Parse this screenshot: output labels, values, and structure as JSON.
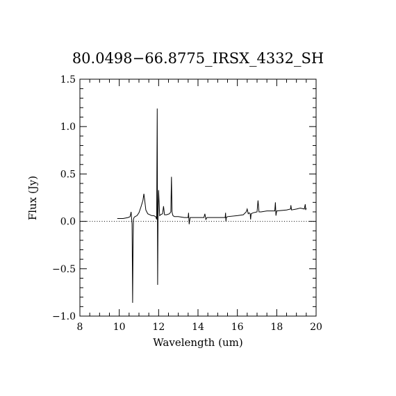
{
  "chart_data": {
    "type": "line",
    "title": "80.0498−66.8775_IRSX_4332_SH",
    "xlabel": "Wavelength (um)",
    "ylabel": "Flux (Jy)",
    "xlim": [
      8,
      20
    ],
    "ylim": [
      -1.0,
      1.5
    ],
    "x_ticks": [
      8,
      10,
      12,
      14,
      16,
      18,
      20
    ],
    "x_tick_labels": [
      "8",
      "10",
      "12",
      "14",
      "16",
      "18",
      "20"
    ],
    "y_ticks": [
      -1.0,
      -0.5,
      0.0,
      0.5,
      1.0,
      1.5
    ],
    "y_tick_labels": [
      "−1.0",
      "−0.5",
      "0.0",
      "0.5",
      "1.0",
      "1.5"
    ],
    "zero_line": true,
    "grid": false,
    "series": [
      {
        "x": [
          9.9,
          10.2,
          10.45,
          10.55,
          10.6,
          10.65,
          10.68,
          10.7,
          10.72,
          10.75,
          10.8,
          10.9,
          11.0,
          11.1,
          11.2,
          11.25,
          11.3,
          11.35,
          11.45,
          11.55,
          11.65,
          11.75,
          11.85,
          11.9,
          11.93,
          11.95,
          11.97,
          12.0,
          12.05,
          12.1,
          12.2,
          12.25,
          12.3,
          12.4,
          12.55,
          12.62,
          12.65,
          12.68,
          12.7,
          12.73,
          12.8,
          13.0,
          13.3,
          13.5,
          13.52,
          13.55,
          13.6,
          14.0,
          14.3,
          14.35,
          14.4,
          14.45,
          14.5,
          15.0,
          15.38,
          15.4,
          15.42,
          15.44,
          15.5,
          16.0,
          16.3,
          16.45,
          16.5,
          16.55,
          16.6,
          16.65,
          16.67,
          16.7,
          16.8,
          17.0,
          17.05,
          17.1,
          17.2,
          17.5,
          17.8,
          17.9,
          17.93,
          17.96,
          18.0,
          18.5,
          18.7,
          18.72,
          18.75,
          19.0,
          19.2,
          19.4,
          19.45,
          19.47,
          19.5
        ],
        "y": [
          0.03,
          0.03,
          0.04,
          0.05,
          0.1,
          -0.03,
          -0.86,
          -0.27,
          0.02,
          0.04,
          0.05,
          0.06,
          0.09,
          0.15,
          0.22,
          0.29,
          0.21,
          0.12,
          0.08,
          0.07,
          0.06,
          0.06,
          0.05,
          0.02,
          1.19,
          -0.67,
          0.06,
          0.33,
          0.06,
          0.07,
          0.08,
          0.16,
          0.07,
          0.07,
          0.08,
          0.1,
          0.47,
          0.1,
          0.08,
          0.06,
          0.05,
          0.05,
          0.04,
          0.04,
          0.09,
          -0.03,
          0.04,
          0.04,
          0.04,
          0.08,
          0.02,
          0.04,
          0.04,
          0.04,
          0.04,
          0.09,
          0.0,
          0.04,
          0.05,
          0.06,
          0.07,
          0.1,
          0.13,
          0.08,
          0.09,
          0.08,
          0.02,
          0.08,
          0.09,
          0.1,
          0.22,
          0.1,
          0.1,
          0.11,
          0.11,
          0.11,
          0.2,
          0.06,
          0.11,
          0.12,
          0.13,
          0.17,
          0.12,
          0.13,
          0.14,
          0.13,
          0.18,
          0.12,
          0.14
        ]
      }
    ]
  }
}
